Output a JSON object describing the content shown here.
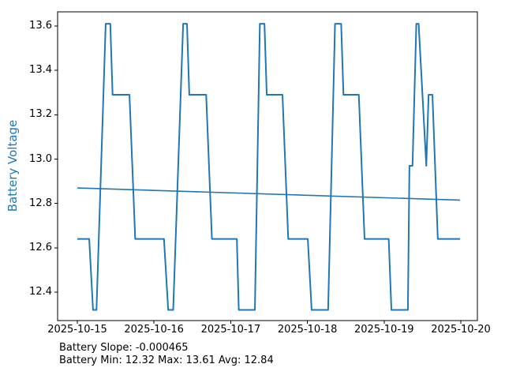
{
  "caption": {
    "line1": "Battery Slope: -0.000465",
    "line2": "Battery Min: 12.32 Max: 13.61 Avg: 12.84"
  },
  "colors": {
    "line": "#1f77b4",
    "trend": "#1f77b4",
    "axis": "#000000",
    "ylabel_text": "#1f77b4",
    "tick_text": "#000000",
    "background": "#ffffff"
  },
  "chart_data": {
    "type": "line",
    "title": "",
    "xlabel": "",
    "ylabel": "Battery Voltage",
    "grid": false,
    "legend_position": "none",
    "x_unit": "days since 2025-10-15 00:00",
    "xlim_days": [
      -0.257,
      5.216
    ],
    "ylim": [
      12.272,
      13.664
    ],
    "y_ticks": [
      {
        "value": 12.4,
        "label": "12.4"
      },
      {
        "value": 12.6,
        "label": "12.6"
      },
      {
        "value": 12.8,
        "label": "12.8"
      },
      {
        "value": 13.0,
        "label": "13.0"
      },
      {
        "value": 13.2,
        "label": "13.2"
      },
      {
        "value": 13.4,
        "label": "13.4"
      },
      {
        "value": 13.6,
        "label": "13.6"
      }
    ],
    "x_ticks": [
      {
        "day": 0,
        "label": "2025-10-15"
      },
      {
        "day": 1,
        "label": "2025-10-16"
      },
      {
        "day": 2,
        "label": "2025-10-17"
      },
      {
        "day": 3,
        "label": "2025-10-18"
      },
      {
        "day": 4,
        "label": "2025-10-19"
      },
      {
        "day": 5,
        "label": "2025-10-20"
      }
    ],
    "stats": {
      "slope": -0.000465,
      "min": 12.32,
      "max": 13.61,
      "avg": 12.84
    },
    "series": [
      {
        "name": "battery-voltage",
        "color": "#1f77b4",
        "width": 2,
        "points": [
          [
            0.0,
            12.64
          ],
          [
            0.155,
            12.64
          ],
          [
            0.205,
            12.32
          ],
          [
            0.25,
            12.32
          ],
          [
            0.37,
            13.61
          ],
          [
            0.43,
            13.61
          ],
          [
            0.46,
            13.29
          ],
          [
            0.68,
            13.29
          ],
          [
            0.755,
            12.64
          ],
          [
            1.13,
            12.64
          ],
          [
            1.185,
            12.32
          ],
          [
            1.25,
            12.32
          ],
          [
            1.38,
            13.61
          ],
          [
            1.43,
            13.61
          ],
          [
            1.46,
            13.29
          ],
          [
            1.68,
            13.29
          ],
          [
            1.755,
            12.64
          ],
          [
            2.08,
            12.64
          ],
          [
            2.105,
            12.32
          ],
          [
            2.315,
            12.32
          ],
          [
            2.38,
            13.61
          ],
          [
            2.44,
            13.61
          ],
          [
            2.47,
            13.29
          ],
          [
            2.675,
            13.29
          ],
          [
            2.75,
            12.64
          ],
          [
            3.005,
            12.64
          ],
          [
            3.055,
            12.32
          ],
          [
            3.27,
            12.32
          ],
          [
            3.36,
            13.61
          ],
          [
            3.44,
            13.61
          ],
          [
            3.47,
            13.29
          ],
          [
            3.67,
            13.29
          ],
          [
            3.745,
            12.64
          ],
          [
            4.06,
            12.64
          ],
          [
            4.095,
            12.32
          ],
          [
            4.31,
            12.32
          ],
          [
            4.33,
            12.97
          ],
          [
            4.37,
            12.97
          ],
          [
            4.42,
            13.61
          ],
          [
            4.45,
            13.61
          ],
          [
            4.55,
            12.97
          ],
          [
            4.58,
            13.29
          ],
          [
            4.63,
            13.29
          ],
          [
            4.7,
            12.64
          ],
          [
            4.99,
            12.64
          ]
        ]
      },
      {
        "name": "battery-trend",
        "color": "#1f77b4",
        "width": 1.6,
        "points": [
          [
            0.0,
            12.87
          ],
          [
            4.99,
            12.815
          ]
        ]
      }
    ]
  }
}
